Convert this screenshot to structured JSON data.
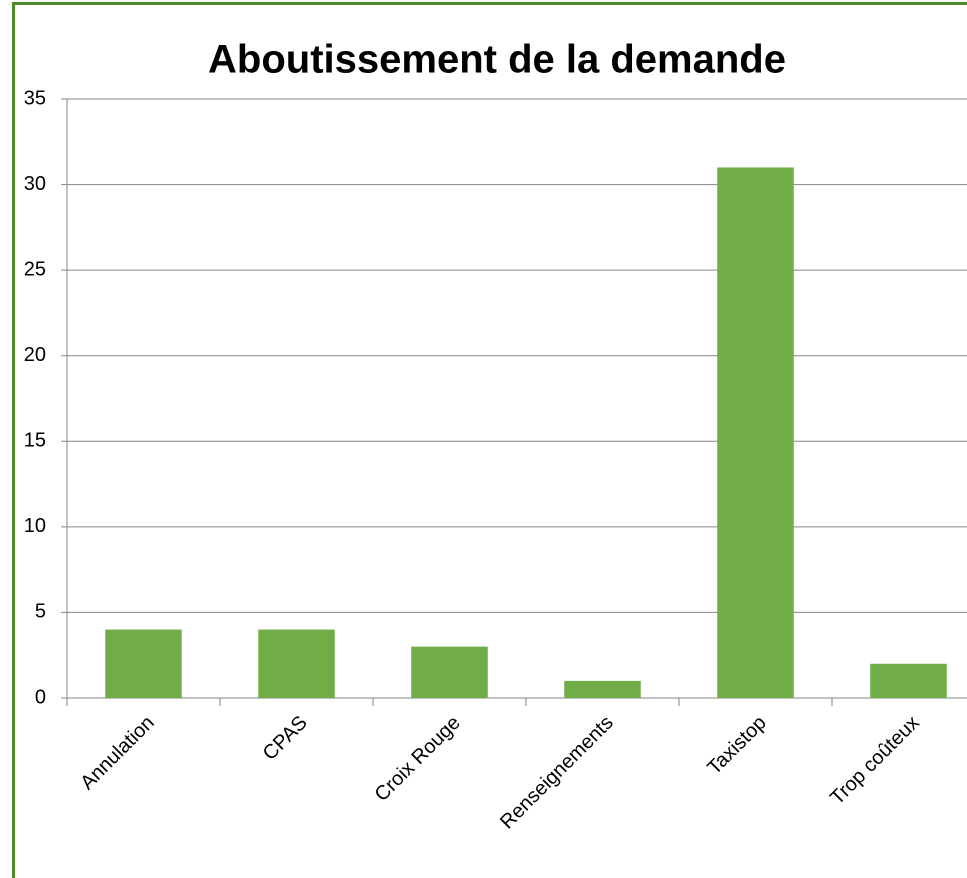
{
  "chart_data": {
    "type": "bar",
    "title": "Aboutissement de la demande",
    "categories": [
      "Annulation",
      "CPAS",
      "Croix Rouge",
      "Renseignements",
      "Taxistop",
      "Trop coûteux"
    ],
    "values": [
      4,
      4,
      3,
      1,
      31,
      2
    ],
    "color": "#70ad47",
    "ylim": [
      0,
      35
    ],
    "yticks": [
      0,
      5,
      10,
      15,
      20,
      25,
      30,
      35
    ],
    "grid": true
  }
}
